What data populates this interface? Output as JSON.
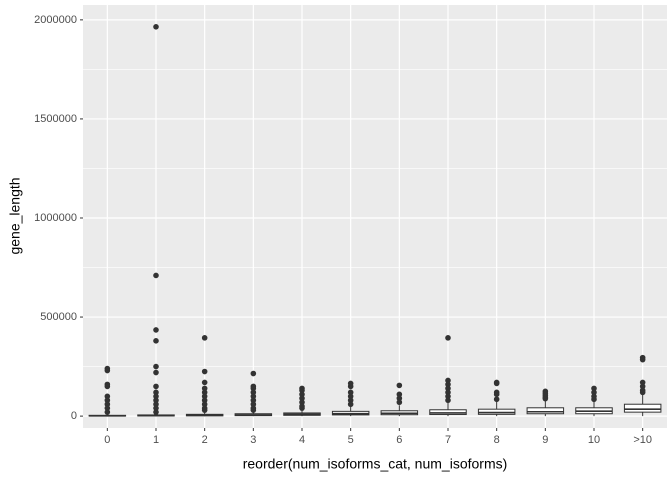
{
  "chart_data": {
    "type": "box",
    "x_label": "reorder(num_isoforms_cat, num_isoforms)",
    "y_label": "gene_length",
    "categories": [
      "0",
      "1",
      "2",
      "3",
      "4",
      "5",
      "6",
      "7",
      "8",
      "9",
      "10",
      ">10"
    ],
    "whisker_low": [
      0,
      0,
      0,
      0,
      0,
      0,
      0,
      0,
      0,
      0,
      0,
      0
    ],
    "q1": [
      500,
      1000,
      1500,
      2500,
      4000,
      6000,
      7000,
      8000,
      9000,
      12000,
      12000,
      20000
    ],
    "median": [
      1500,
      2500,
      4000,
      6000,
      9000,
      12000,
      14000,
      16000,
      18000,
      22000,
      25000,
      35000
    ],
    "q3": [
      4000,
      6000,
      9000,
      12000,
      16000,
      24000,
      27000,
      32000,
      35000,
      42000,
      42000,
      60000
    ],
    "whisker_high": [
      9000,
      13000,
      20000,
      25000,
      32000,
      50000,
      55000,
      68000,
      72000,
      80000,
      75000,
      110000
    ],
    "outliers": [
      [
        240000,
        230000,
        160000,
        150000,
        100000,
        80000,
        60000,
        40000,
        20000
      ],
      [
        1965000,
        710000,
        435000,
        380000,
        250000,
        220000,
        150000,
        120000,
        100000,
        80000,
        60000,
        40000,
        20000
      ],
      [
        395000,
        225000,
        170000,
        140000,
        120000,
        100000,
        80000,
        60000,
        40000,
        30000
      ],
      [
        215000,
        150000,
        140000,
        120000,
        100000,
        80000,
        60000,
        40000,
        30000
      ],
      [
        140000,
        130000,
        110000,
        90000,
        70000,
        50000,
        40000
      ],
      [
        165000,
        150000,
        120000,
        100000,
        80000,
        60000
      ],
      [
        155000,
        110000,
        90000,
        70000
      ],
      [
        395000,
        180000,
        160000,
        140000,
        120000,
        100000,
        80000
      ],
      [
        170000,
        165000,
        120000,
        110000,
        85000
      ],
      [
        125000,
        115000,
        105000,
        95000,
        88000
      ],
      [
        140000,
        120000,
        100000,
        85000
      ],
      [
        295000,
        285000,
        170000,
        150000,
        130000,
        120000
      ]
    ],
    "color": "#333333",
    "box_fill": "#ffffff",
    "ylim": [
      -60000,
      2075000
    ],
    "yticks": [
      0,
      500000,
      1000000,
      1500000,
      2000000
    ],
    "minor_yticks": [
      250000,
      750000,
      1250000,
      1750000
    ],
    "grid": true
  }
}
